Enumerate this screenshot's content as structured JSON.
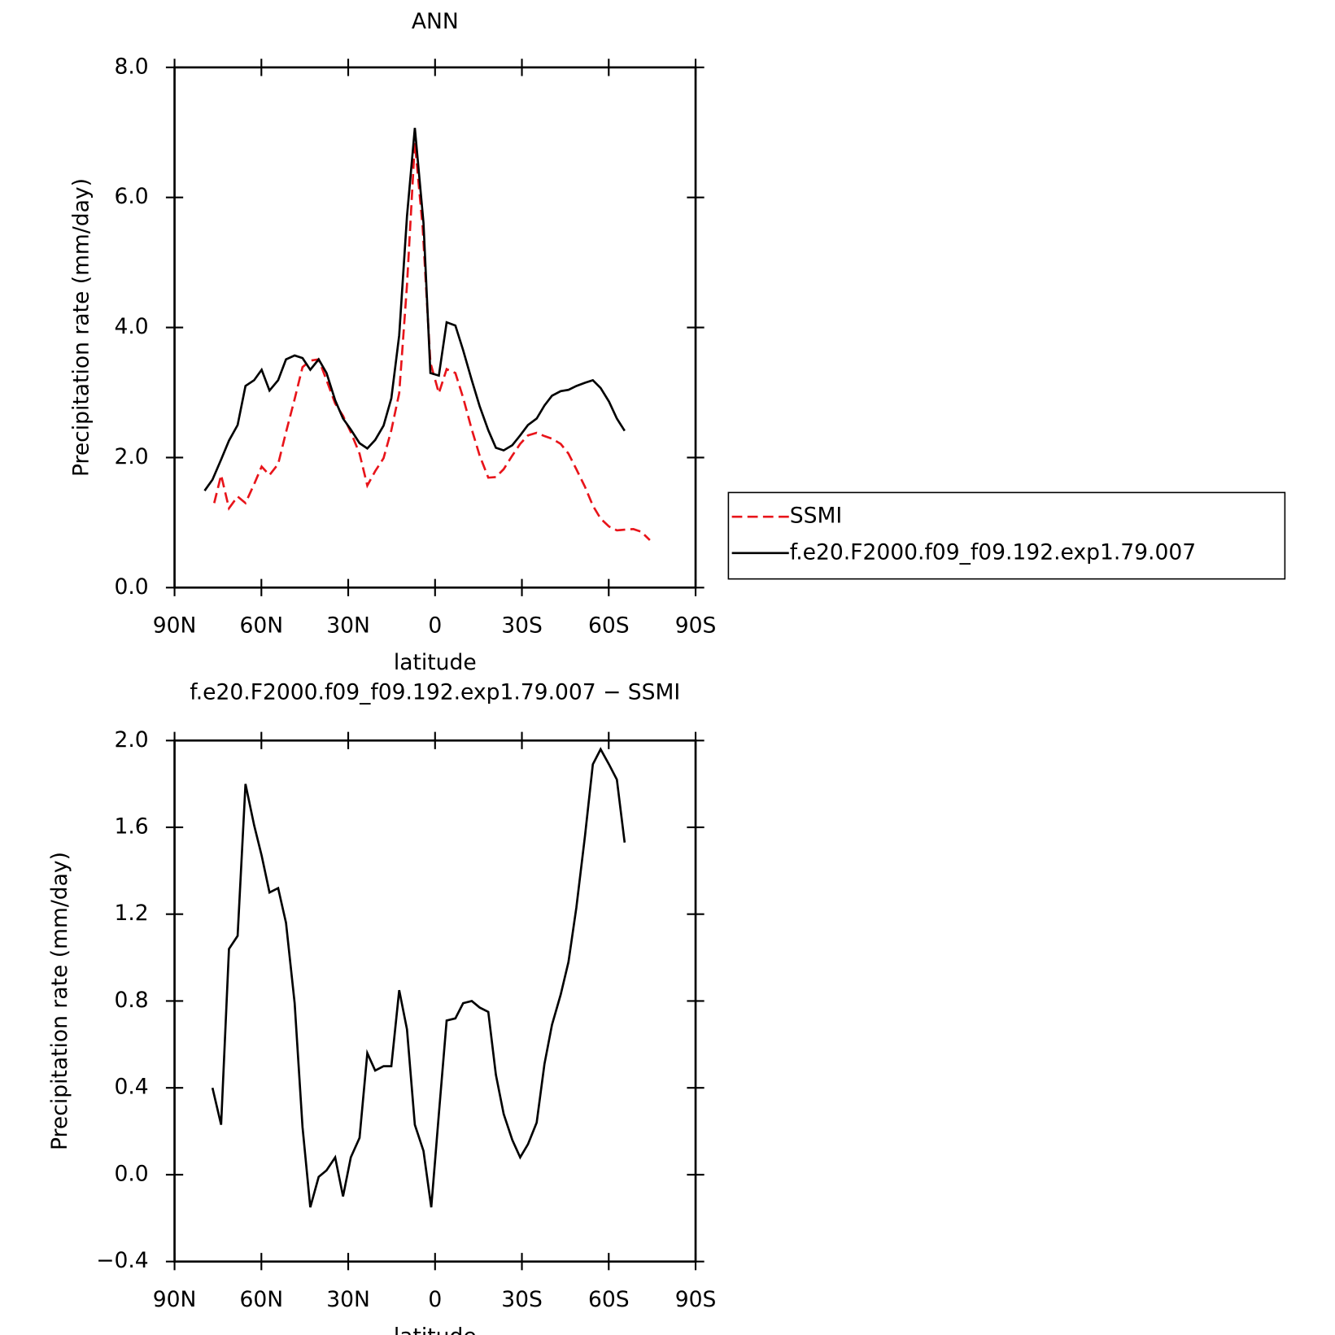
{
  "chart_data": [
    {
      "type": "line",
      "title": "ANN",
      "x_label": "latitude",
      "y_label": "Precipitation rate (mm/day)",
      "xlim": [
        90,
        -90
      ],
      "ylim": [
        0,
        8
      ],
      "xticks": [
        {
          "value": 90,
          "label": "90N"
        },
        {
          "value": 60,
          "label": "60N"
        },
        {
          "value": 30,
          "label": "30N"
        },
        0,
        {
          "value": -30,
          "label": "30S"
        },
        {
          "value": -60,
          "label": "60S"
        },
        {
          "value": -90,
          "label": "90S"
        }
      ],
      "yticks": [
        {
          "value": 0,
          "label": "0.0"
        },
        {
          "value": 2,
          "label": "2.0"
        },
        {
          "value": 4,
          "label": "4.0"
        },
        {
          "value": 6,
          "label": "6.0"
        },
        {
          "value": 8,
          "label": "8.0"
        }
      ],
      "legend": "right",
      "series": [
        {
          "name": "SSMI",
          "color": "#e8141a",
          "dash": "dashed",
          "x": [
            76.3,
            73.9,
            71.2,
            68.2,
            65.5,
            62.5,
            59.9,
            57.2,
            54.2,
            51.5,
            48.5,
            45.8,
            43.1,
            40.2,
            37.5,
            34.5,
            31.8,
            29.1,
            26.1,
            23.4,
            20.7,
            17.8,
            15.1,
            12.4,
            9.7,
            7.0,
            4.3,
            1.6,
            -1.3,
            -4.0,
            -7.0,
            -9.7,
            -12.7,
            -15.4,
            -18.4,
            -21.0,
            -23.7,
            -26.7,
            -29.4,
            -32.1,
            -35.1,
            -37.8,
            -40.4,
            -43.4,
            -46.1,
            -48.8,
            -51.8,
            -54.5,
            -57.2,
            -60.1,
            -62.8,
            -65.5,
            -68.5,
            -71.2,
            -74.2
          ],
          "values": [
            1.3,
            1.73,
            1.22,
            1.4,
            1.3,
            1.59,
            1.86,
            1.73,
            1.9,
            2.39,
            2.9,
            3.39,
            3.49,
            3.51,
            3.19,
            2.83,
            2.64,
            2.39,
            2.06,
            1.57,
            1.79,
            1.99,
            2.42,
            2.99,
            4.65,
            6.84,
            5.55,
            3.46,
            2.99,
            3.36,
            3.3,
            2.92,
            2.43,
            2.03,
            1.69,
            1.7,
            1.82,
            2.03,
            2.21,
            2.34,
            2.38,
            2.33,
            2.29,
            2.21,
            2.06,
            1.82,
            1.55,
            1.26,
            1.06,
            0.94,
            0.88,
            0.89,
            0.9,
            0.86,
            0.73
          ]
        },
        {
          "name": "f.e20.F2000.f09_f09.192.exp1.79.007",
          "color": "#000000",
          "dash": "solid",
          "x": [
            79.6,
            76.9,
            73.9,
            71.2,
            68.2,
            65.5,
            62.5,
            59.9,
            57.2,
            54.2,
            51.5,
            48.5,
            45.8,
            43.1,
            40.2,
            37.5,
            34.5,
            31.8,
            29.1,
            26.1,
            23.4,
            20.7,
            17.8,
            15.1,
            12.4,
            9.7,
            7.0,
            4.0,
            1.6,
            -1.3,
            -4.0,
            -7.0,
            -9.7,
            -12.7,
            -15.4,
            -18.4,
            -21.0,
            -23.7,
            -26.7,
            -29.4,
            -32.1,
            -35.1,
            -37.8,
            -40.4,
            -43.4,
            -46.1,
            -48.8,
            -51.8,
            -54.5,
            -57.2,
            -60.1,
            -62.8,
            -65.5
          ],
          "values": [
            1.49,
            1.66,
            1.97,
            2.26,
            2.5,
            3.1,
            3.19,
            3.35,
            3.03,
            3.19,
            3.51,
            3.57,
            3.53,
            3.35,
            3.51,
            3.3,
            2.88,
            2.6,
            2.43,
            2.22,
            2.14,
            2.27,
            2.49,
            2.91,
            3.88,
            5.71,
            7.07,
            5.61,
            3.3,
            3.26,
            4.08,
            4.03,
            3.65,
            3.19,
            2.79,
            2.42,
            2.15,
            2.11,
            2.19,
            2.34,
            2.5,
            2.6,
            2.8,
            2.95,
            3.02,
            3.04,
            3.1,
            3.15,
            3.19,
            3.07,
            2.86,
            2.6,
            2.41
          ]
        }
      ]
    },
    {
      "type": "line",
      "title": "f.e20.F2000.f09_f09.192.exp1.79.007 − SSMI",
      "x_label": "latitude",
      "y_label": "Precipitation rate (mm/day)",
      "xlim": [
        90,
        -90
      ],
      "ylim": [
        -0.4,
        2
      ],
      "xticks": [
        {
          "value": 90,
          "label": "90N"
        },
        {
          "value": 60,
          "label": "60N"
        },
        {
          "value": 30,
          "label": "30N"
        },
        0,
        {
          "value": -30,
          "label": "30S"
        },
        {
          "value": -60,
          "label": "60S"
        },
        {
          "value": -90,
          "label": "90S"
        }
      ],
      "yticks": [
        {
          "value": -0.4,
          "label": "−0.4"
        },
        {
          "value": 0,
          "label": "0.0"
        },
        0.4,
        0.8,
        1.2,
        1.6,
        {
          "value": 2,
          "label": "2.0"
        }
      ],
      "series": [
        {
          "color": "#000000",
          "dash": "solid",
          "x": [
            76.9,
            73.9,
            71.2,
            68.2,
            65.5,
            62.5,
            59.9,
            57.2,
            54.2,
            51.5,
            48.5,
            45.8,
            43.1,
            40.2,
            37.5,
            34.5,
            31.8,
            29.1,
            26.1,
            23.4,
            20.7,
            17.8,
            15.1,
            12.4,
            9.7,
            7.0,
            4.0,
            1.3,
            -1.3,
            -4.0,
            -7.0,
            -9.7,
            -12.7,
            -15.4,
            -18.4,
            -21.0,
            -23.7,
            -26.7,
            -29.4,
            -32.1,
            -35.1,
            -37.8,
            -40.4,
            -43.4,
            -46.1,
            -48.8,
            -51.8,
            -54.5,
            -57.2,
            -60.1,
            -62.8,
            -65.5
          ],
          "values": [
            0.4,
            0.23,
            1.04,
            1.1,
            1.8,
            1.61,
            1.47,
            1.3,
            1.32,
            1.16,
            0.79,
            0.22,
            -0.15,
            -0.01,
            0.02,
            0.08,
            -0.1,
            0.08,
            0.17,
            0.56,
            0.48,
            0.5,
            0.5,
            0.85,
            0.67,
            0.23,
            0.11,
            -0.15,
            0.28,
            0.71,
            0.72,
            0.79,
            0.8,
            0.77,
            0.75,
            0.46,
            0.28,
            0.16,
            0.08,
            0.14,
            0.24,
            0.51,
            0.69,
            0.83,
            0.98,
            1.23,
            1.56,
            1.89,
            1.96,
            1.89,
            1.82,
            1.53
          ]
        }
      ]
    }
  ]
}
